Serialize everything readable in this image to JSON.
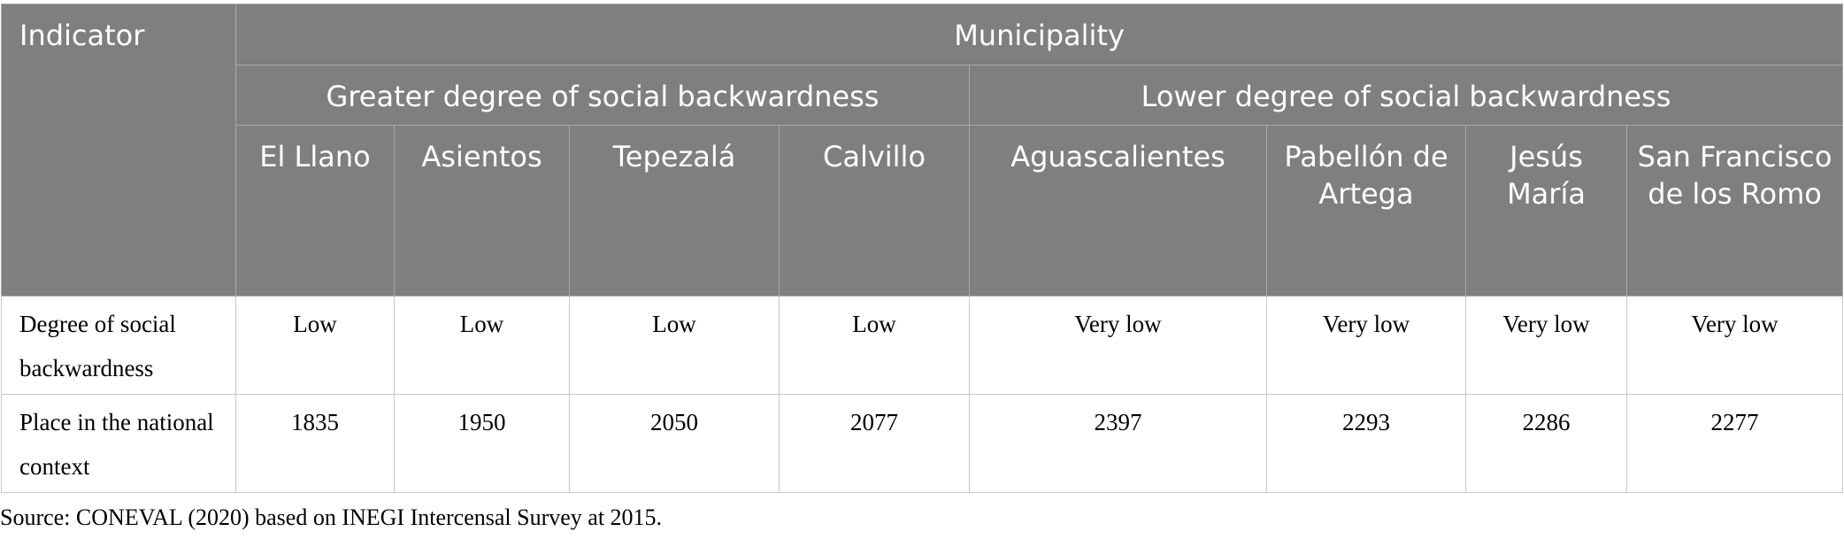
{
  "header": {
    "indicator": "Indicator",
    "municipality": "Municipality",
    "groups": [
      "Greater degree of social backwardness",
      "Lower degree of social backwardness"
    ],
    "columns": [
      "El Llano",
      "Asientos",
      "Tepezalá",
      "Calvillo",
      "Aguascalientes",
      "Pabellón de Artega",
      "Jesús María",
      "San Francisco de los Romo"
    ]
  },
  "rows": [
    {
      "label": "Degree of social backwardness",
      "values": [
        "Low",
        "Low",
        "Low",
        "Low",
        "Very low",
        "Very low",
        "Very low",
        "Very low"
      ]
    },
    {
      "label": "Place in the national context",
      "values": [
        1835,
        1950,
        2050,
        2077,
        2397,
        2293,
        2286,
        2277
      ]
    }
  ],
  "source": "Source: CONEVAL (2020) based on INEGI Intercensal Survey at 2015."
}
